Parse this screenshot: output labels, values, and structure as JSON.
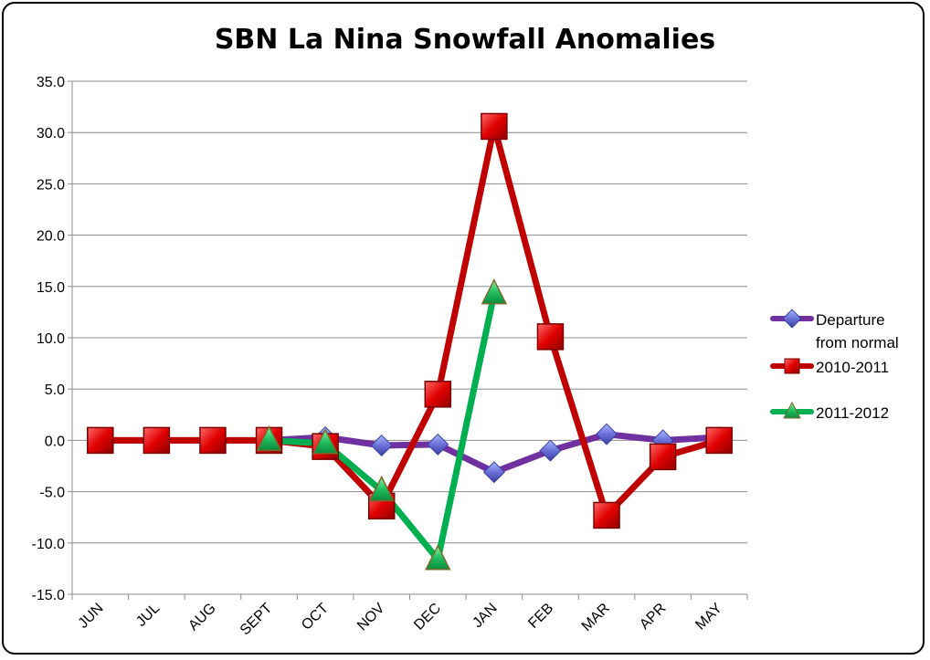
{
  "chart_data": {
    "type": "line",
    "title": "SBN La Nina Snowfall Anomalies",
    "xlabel": "",
    "ylabel": "",
    "categories": [
      "JUN",
      "JUL",
      "AUG",
      "SEPT",
      "OCT",
      "NOV",
      "DEC",
      "JAN",
      "FEB",
      "MAR",
      "APR",
      "MAY"
    ],
    "ylim": [
      -15,
      35
    ],
    "ytick_labels": [
      "35.0",
      "30.0",
      "25.0",
      "20.0",
      "15.0",
      "10.0",
      "5.0",
      "0.0",
      "-5.0",
      "-10.0",
      "-15.0"
    ],
    "grid": true,
    "legend_position": "right",
    "series": [
      {
        "name_lines": [
          "Departure",
          "from normal"
        ],
        "color": "#7030A0",
        "marker": "diamond",
        "values": [
          0,
          0,
          0,
          0,
          0.3,
          -0.5,
          -0.4,
          -3.1,
          -1.0,
          0.6,
          0.0,
          0.3
        ]
      },
      {
        "name": "2010-2011",
        "color": "#C00000",
        "marker": "square",
        "values": [
          0,
          0,
          0,
          0,
          -0.6,
          -6.4,
          4.5,
          30.6,
          10.1,
          -7.3,
          -1.6,
          0.0
        ]
      },
      {
        "name": "2011-2012",
        "color": "#00B050",
        "marker": "triangle",
        "values": [
          null,
          null,
          null,
          0,
          -0.3,
          -4.9,
          -11.6,
          14.3,
          null,
          null,
          null,
          null
        ]
      }
    ]
  }
}
